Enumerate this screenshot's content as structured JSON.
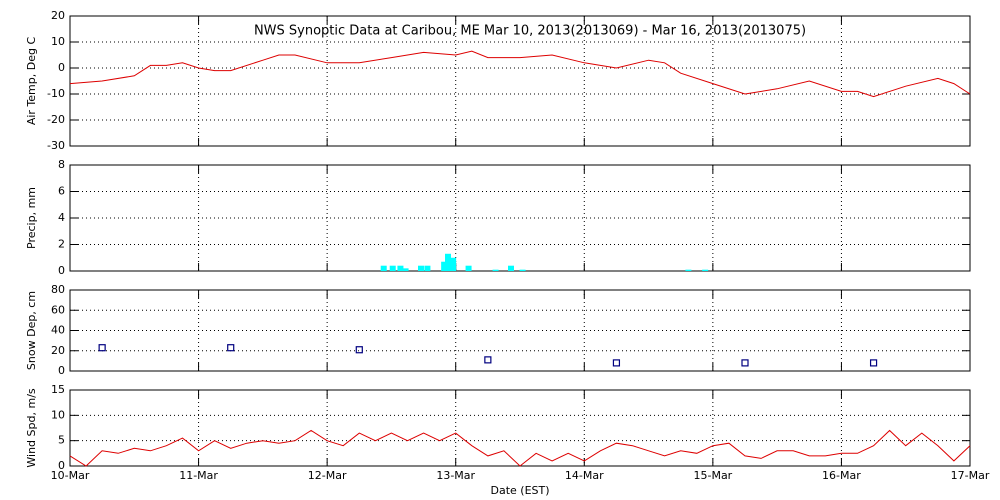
{
  "chart_data": [
    {
      "type": "line",
      "title": "NWS Synoptic Data at Caribou, ME   Mar 10, 2013(2013069) - Mar 16, 2013(2013075)",
      "ylabel": "Air Temp, Deg C",
      "color": "#dd0000",
      "grid": true,
      "xlim": [
        0,
        7
      ],
      "xticks": [
        0,
        1,
        2,
        3,
        4,
        5,
        6,
        7
      ],
      "ylim": [
        -30,
        20
      ],
      "yticks": [
        -30,
        -20,
        -10,
        0,
        10,
        20
      ],
      "x": [
        0,
        0.25,
        0.5,
        0.625,
        0.75,
        0.875,
        1,
        1.125,
        1.25,
        1.5,
        1.625,
        1.75,
        2,
        2.25,
        2.5,
        2.75,
        3,
        3.125,
        3.25,
        3.5,
        3.75,
        4,
        4.25,
        4.5,
        4.625,
        4.75,
        5,
        5.25,
        5.5,
        5.75,
        6,
        6.125,
        6.25,
        6.5,
        6.75,
        6.875,
        7
      ],
      "values": [
        -6,
        -5,
        -3,
        1,
        1,
        2,
        0,
        -1,
        -1,
        3,
        5,
        5,
        2,
        2,
        4,
        6,
        5,
        6.5,
        4,
        4,
        5,
        2,
        0,
        3,
        2,
        -2,
        -6,
        -10,
        -8,
        -5,
        -9,
        -9,
        -11,
        -7,
        -4,
        -6,
        -10
      ]
    },
    {
      "type": "bar",
      "ylabel": "Precip, mm",
      "color": "#00ffff",
      "grid": true,
      "xlim": [
        0,
        7
      ],
      "xticks": [
        0,
        1,
        2,
        3,
        4,
        5,
        6,
        7
      ],
      "ylim": [
        0,
        8
      ],
      "yticks": [
        0,
        2,
        4,
        6,
        8
      ],
      "x": [
        2.44,
        2.51,
        2.57,
        2.61,
        2.73,
        2.78,
        2.91,
        2.94,
        2.98,
        3.1,
        3.31,
        3.43,
        3.52,
        4.81,
        4.94
      ],
      "values": [
        0.4,
        0.4,
        0.4,
        0.2,
        0.4,
        0.4,
        0.7,
        1.3,
        1.0,
        0.4,
        0.1,
        0.4,
        0.1,
        0.1,
        0.1
      ]
    },
    {
      "type": "scatter",
      "ylabel": "Snow Dep, cm",
      "color": "#000080",
      "grid": true,
      "xlim": [
        0,
        7
      ],
      "xticks": [
        0,
        1,
        2,
        3,
        4,
        5,
        6,
        7
      ],
      "ylim": [
        0,
        80
      ],
      "yticks": [
        0,
        20,
        40,
        60,
        80
      ],
      "x": [
        0.25,
        1.25,
        2.25,
        3.25,
        4.25,
        5.25,
        6.25
      ],
      "values": [
        23,
        23,
        21,
        11,
        8,
        8,
        8
      ]
    },
    {
      "type": "line",
      "ylabel": "Wind Spd, m/s",
      "xlabel": "Date (EST)",
      "color": "#dd0000",
      "grid": true,
      "xlim": [
        0,
        7
      ],
      "xticks": [
        {
          "value": 0,
          "label": "10-Mar"
        },
        {
          "value": 1,
          "label": "11-Mar"
        },
        {
          "value": 2,
          "label": "12-Mar"
        },
        {
          "value": 3,
          "label": "13-Mar"
        },
        {
          "value": 4,
          "label": "14-Mar"
        },
        {
          "value": 5,
          "label": "15-Mar"
        },
        {
          "value": 6,
          "label": "16-Mar"
        },
        {
          "value": 7,
          "label": "17-Mar"
        }
      ],
      "ylim": [
        0,
        15
      ],
      "yticks": [
        0,
        5,
        10,
        15
      ],
      "x": [
        0,
        0.125,
        0.25,
        0.375,
        0.5,
        0.625,
        0.75,
        0.875,
        1,
        1.125,
        1.25,
        1.375,
        1.5,
        1.625,
        1.75,
        1.875,
        2,
        2.125,
        2.25,
        2.375,
        2.5,
        2.625,
        2.75,
        2.875,
        3,
        3.125,
        3.25,
        3.375,
        3.5,
        3.625,
        3.75,
        3.875,
        4,
        4.125,
        4.25,
        4.375,
        4.5,
        4.625,
        4.75,
        4.875,
        5,
        5.125,
        5.25,
        5.375,
        5.5,
        5.625,
        5.75,
        5.875,
        6,
        6.125,
        6.25,
        6.375,
        6.5,
        6.625,
        6.75,
        6.875,
        7
      ],
      "values": [
        2,
        0,
        3,
        2.5,
        3.5,
        3,
        4,
        5.5,
        3,
        5,
        3.5,
        4.5,
        5,
        4.5,
        5,
        7,
        5,
        4,
        6.5,
        5,
        6.5,
        5,
        6.5,
        5,
        6.5,
        4,
        2,
        3,
        0,
        2.5,
        1,
        2.5,
        1,
        3,
        4.5,
        4,
        3,
        2,
        3,
        2.5,
        4,
        4.5,
        2,
        1.5,
        3,
        3,
        2,
        2,
        2.5,
        2.5,
        4,
        7,
        4,
        6.5,
        4,
        1,
        4
      ]
    }
  ]
}
